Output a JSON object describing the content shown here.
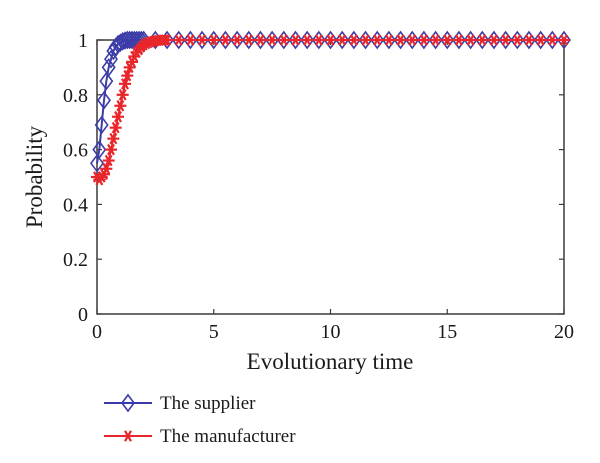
{
  "chart_data": {
    "type": "line",
    "title": "",
    "xlabel": "Evolutionary time",
    "ylabel": "Probability",
    "xlim": [
      0,
      20
    ],
    "ylim": [
      0,
      1
    ],
    "x_ticks": [
      0,
      5,
      10,
      15,
      20
    ],
    "y_ticks": [
      0,
      0.2,
      0.4,
      0.6,
      0.8,
      1
    ],
    "grid": false,
    "legend_position": "bottom-left outside",
    "series": [
      {
        "name": "The supplier",
        "color": "#3c3ca8",
        "marker": "diamond",
        "x": [
          0,
          0.1,
          0.2,
          0.3,
          0.4,
          0.5,
          0.6,
          0.7,
          0.8,
          0.9,
          1.0,
          1.1,
          1.2,
          1.3,
          1.4,
          1.5,
          1.6,
          1.7,
          1.8,
          1.9,
          2.0,
          2.5,
          3,
          3.5,
          4,
          4.5,
          5,
          5.5,
          6,
          6.5,
          7,
          7.5,
          8,
          8.5,
          9,
          9.5,
          10,
          10.5,
          11,
          11.5,
          12,
          12.5,
          13,
          13.5,
          14,
          14.5,
          15,
          15.5,
          16,
          16.5,
          17,
          17.5,
          18,
          18.5,
          19,
          19.5,
          20
        ],
        "values": [
          0.55,
          0.6,
          0.69,
          0.78,
          0.85,
          0.9,
          0.93,
          0.96,
          0.975,
          0.985,
          0.99,
          0.995,
          0.998,
          1,
          1,
          1,
          1,
          1,
          1,
          1,
          1,
          1,
          1,
          1,
          1,
          1,
          1,
          1,
          1,
          1,
          1,
          1,
          1,
          1,
          1,
          1,
          1,
          1,
          1,
          1,
          1,
          1,
          1,
          1,
          1,
          1,
          1,
          1,
          1,
          1,
          1,
          1,
          1,
          1,
          1,
          1,
          1
        ]
      },
      {
        "name": "The manufacturer",
        "color": "#e8262b",
        "marker": "asterisk",
        "x": [
          0,
          0.1,
          0.2,
          0.3,
          0.4,
          0.5,
          0.6,
          0.7,
          0.8,
          0.9,
          1.0,
          1.1,
          1.2,
          1.3,
          1.4,
          1.5,
          1.6,
          1.7,
          1.8,
          1.9,
          2.0,
          2.1,
          2.2,
          2.3,
          2.4,
          2.5,
          2.6,
          2.7,
          2.8,
          2.9,
          3.0,
          3.5,
          4,
          4.5,
          5,
          5.5,
          6,
          6.5,
          7,
          7.5,
          8,
          8.5,
          9,
          9.5,
          10,
          10.5,
          11,
          11.5,
          12,
          12.5,
          13,
          13.5,
          14,
          14.5,
          15,
          15.5,
          16,
          16.5,
          17,
          17.5,
          18,
          18.5,
          19,
          19.5,
          20
        ],
        "values": [
          0.5,
          0.49,
          0.5,
          0.51,
          0.53,
          0.56,
          0.6,
          0.64,
          0.68,
          0.72,
          0.76,
          0.8,
          0.84,
          0.87,
          0.9,
          0.92,
          0.94,
          0.955,
          0.965,
          0.975,
          0.982,
          0.987,
          0.99,
          0.993,
          0.995,
          0.997,
          0.998,
          0.999,
          1,
          1,
          1,
          1,
          1,
          1,
          1,
          1,
          1,
          1,
          1,
          1,
          1,
          1,
          1,
          1,
          1,
          1,
          1,
          1,
          1,
          1,
          1,
          1,
          1,
          1,
          1,
          1,
          1,
          1,
          1,
          1,
          1,
          1,
          1,
          1,
          1
        ]
      }
    ]
  }
}
